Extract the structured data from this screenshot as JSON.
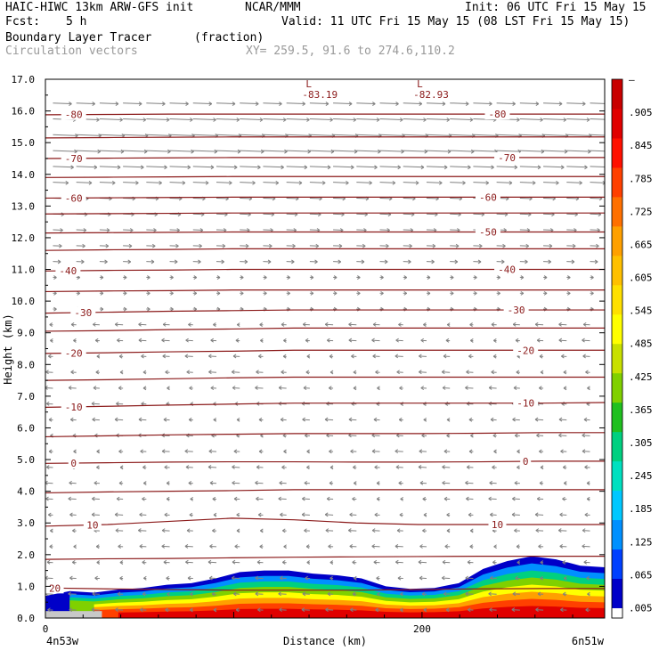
{
  "header": {
    "model": "HAIC-HIWC 13km ARW-GFS init",
    "org": "NCAR/MMM",
    "init": "Init: 06 UTC Fri 15 May 15",
    "fcst_label": "Fcst:",
    "fcst_value": "5 h",
    "valid": "Valid: 11 UTC Fri 15 May 15 (08 LST Fri 15 May 15)",
    "field": "Boundary Layer Tracer",
    "units": "(fraction)",
    "vectors": "Circulation vectors",
    "xy": "XY= 259.5, 91.6 to 274.6,110.2"
  },
  "chart_data": {
    "type": "heatmap",
    "xlabel": "Distance (km)",
    "ylabel": "Height (km)",
    "xlim": [
      0,
      297
    ],
    "ylim": [
      0,
      17
    ],
    "x_ticks": [
      0,
      200
    ],
    "y_ticks": [
      "0.0",
      "1.0",
      "2.0",
      "3.0",
      "4.0",
      "5.0",
      "6.0",
      "7.0",
      "8.0",
      "9.0",
      "10.0",
      "11.0",
      "12.0",
      "13.0",
      "14.0",
      "15.0",
      "16.0",
      "17.0"
    ],
    "x_end_labels": {
      "left": "4n53w",
      "right": "6n51w"
    },
    "colorbar": {
      "labels": [
        ".005",
        ".065",
        ".125",
        ".185",
        ".245",
        ".305",
        ".365",
        ".425",
        ".485",
        ".545",
        ".605",
        ".665",
        ".725",
        ".785",
        ".845",
        ".905",
        "–"
      ],
      "colors": [
        "#0000c8",
        "#0040ff",
        "#0090ff",
        "#00c8ff",
        "#00e0c0",
        "#00d080",
        "#20c020",
        "#80d000",
        "#c8e000",
        "#ffff00",
        "#ffe000",
        "#ffc000",
        "#ffa000",
        "#ff7000",
        "#ff4000",
        "#ff1000",
        "#e00000",
        "#c80000"
      ]
    },
    "isotherms": [
      {
        "label": "20",
        "y": [
          0.95,
          0.92,
          0.9,
          0.88,
          0.88,
          0.88,
          0.9,
          0.92,
          0.93,
          0.93
        ],
        "labels_at": [
          5
        ]
      },
      {
        "label": "",
        "y": [
          1.85,
          1.87,
          1.88,
          1.9,
          1.92,
          1.93,
          1.94,
          1.95,
          1.95,
          1.95
        ],
        "labels_at": []
      },
      {
        "label": "10",
        "y": [
          2.9,
          2.95,
          3.05,
          3.15,
          3.1,
          3.0,
          2.95,
          2.95,
          2.95,
          2.95
        ],
        "labels_at": [
          25,
          240
        ]
      },
      {
        "label": "",
        "y": [
          3.95,
          3.98,
          4.0,
          4.02,
          4.05,
          4.05,
          4.05,
          4.05,
          4.05,
          4.05
        ],
        "labels_at": []
      },
      {
        "label": "0",
        "y": [
          4.88,
          4.9,
          4.92,
          4.93,
          4.93,
          4.92,
          4.92,
          4.93,
          4.95,
          4.95
        ],
        "labels_at": [
          15,
          255
        ]
      },
      {
        "label": "",
        "y": [
          5.72,
          5.75,
          5.78,
          5.8,
          5.82,
          5.82,
          5.82,
          5.83,
          5.85,
          5.85
        ],
        "labels_at": []
      },
      {
        "label": "-10",
        "y": [
          6.65,
          6.68,
          6.72,
          6.75,
          6.78,
          6.78,
          6.78,
          6.78,
          6.78,
          6.8
        ],
        "labels_at": [
          15,
          255
        ]
      },
      {
        "label": "",
        "y": [
          7.5,
          7.52,
          7.55,
          7.58,
          7.6,
          7.6,
          7.6,
          7.6,
          7.6,
          7.6
        ],
        "labels_at": []
      },
      {
        "label": "-20",
        "y": [
          8.35,
          8.37,
          8.4,
          8.42,
          8.45,
          8.45,
          8.45,
          8.45,
          8.45,
          8.45
        ],
        "labels_at": [
          15,
          255
        ]
      },
      {
        "label": "",
        "y": [
          9.05,
          9.07,
          9.1,
          9.12,
          9.15,
          9.15,
          9.15,
          9.15,
          9.15,
          9.15
        ],
        "labels_at": []
      },
      {
        "label": "-30",
        "y": [
          9.62,
          9.65,
          9.68,
          9.7,
          9.72,
          9.72,
          9.72,
          9.72,
          9.72,
          9.72
        ],
        "labels_at": [
          20,
          250
        ]
      },
      {
        "label": "",
        "y": [
          10.3,
          10.32,
          10.33,
          10.35,
          10.35,
          10.35,
          10.35,
          10.35,
          10.35,
          10.35
        ],
        "labels_at": []
      },
      {
        "label": "-40",
        "y": [
          10.95,
          10.97,
          10.98,
          11.0,
          11.0,
          11.0,
          11.0,
          11.0,
          11.0,
          11.0
        ],
        "labels_at": [
          12,
          245
        ]
      },
      {
        "label": "",
        "y": [
          11.6,
          11.62,
          11.63,
          11.65,
          11.65,
          11.65,
          11.65,
          11.65,
          11.65,
          11.65
        ],
        "labels_at": []
      },
      {
        "label": "-50",
        "y": [
          12.15,
          12.16,
          12.17,
          12.18,
          12.18,
          12.18,
          12.18,
          12.18,
          12.18,
          12.18
        ],
        "labels_at": [
          235
        ]
      },
      {
        "label": "",
        "y": [
          12.75,
          12.76,
          12.77,
          12.78,
          12.78,
          12.78,
          12.78,
          12.78,
          12.78,
          12.78
        ],
        "labels_at": []
      },
      {
        "label": "-60",
        "y": [
          13.25,
          13.26,
          13.27,
          13.28,
          13.28,
          13.28,
          13.28,
          13.28,
          13.28,
          13.28
        ],
        "labels_at": [
          15,
          235
        ]
      },
      {
        "label": "",
        "y": [
          13.9,
          13.91,
          13.92,
          13.93,
          13.93,
          13.93,
          13.93,
          13.93,
          13.93,
          13.93
        ],
        "labels_at": []
      },
      {
        "label": "-70",
        "y": [
          14.5,
          14.51,
          14.52,
          14.53,
          14.53,
          14.53,
          14.53,
          14.53,
          14.53,
          14.53
        ],
        "labels_at": [
          15,
          245
        ]
      },
      {
        "label": "",
        "y": [
          15.15,
          15.16,
          15.17,
          15.18,
          15.18,
          15.18,
          15.18,
          15.18,
          15.18,
          15.18
        ],
        "labels_at": []
      },
      {
        "label": "-80",
        "y": [
          15.88,
          15.89,
          15.9,
          15.9,
          15.9,
          15.9,
          15.9,
          15.9,
          15.9,
          15.9
        ],
        "labels_at": [
          15,
          240
        ]
      }
    ],
    "lows": [
      {
        "x": 143,
        "y": 16.75,
        "mark": "L",
        "value": "-83.19"
      },
      {
        "x": 202,
        "y": 16.75,
        "mark": "L",
        "value": "-82.93"
      }
    ],
    "tracer_top_km": [
      0.7,
      0.85,
      0.8,
      0.9,
      0.95,
      1.05,
      1.1,
      1.25,
      1.45,
      1.5,
      1.5,
      1.4,
      1.35,
      1.25,
      1.0,
      0.92,
      0.95,
      1.1,
      1.55,
      1.8,
      1.95,
      1.85,
      1.65,
      1.6
    ],
    "tracer_colors": [
      "#0000c8",
      "#0090ff",
      "#00d080",
      "#80d000",
      "#ffff00",
      "#ffa000",
      "#ff4000",
      "#e00000"
    ]
  }
}
